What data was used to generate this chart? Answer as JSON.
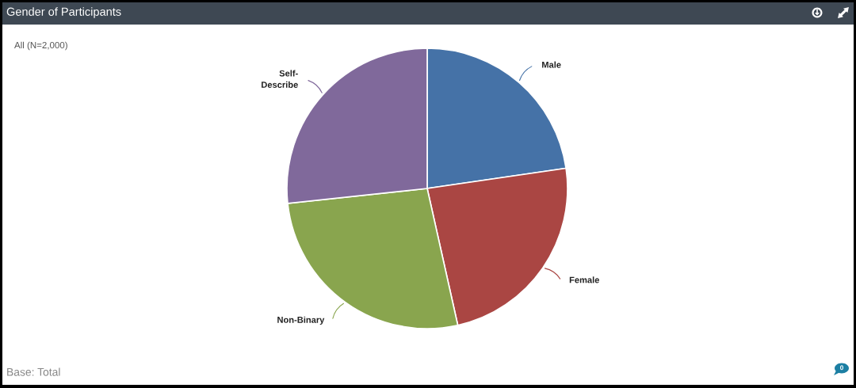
{
  "chart_data": {
    "type": "pie",
    "title": "Gender of Participants",
    "subtitle": "All (N=2,000)",
    "categories": [
      "Male",
      "Female",
      "Non-Binary",
      "Self-\nDescribe"
    ],
    "values": [
      22.7,
      23.8,
      26.8,
      26.7
    ],
    "colors": [
      "#4572a7",
      "#aa4643",
      "#89a54e",
      "#80699b"
    ],
    "annotations": [
      "Base: Total",
      "0"
    ]
  }
}
